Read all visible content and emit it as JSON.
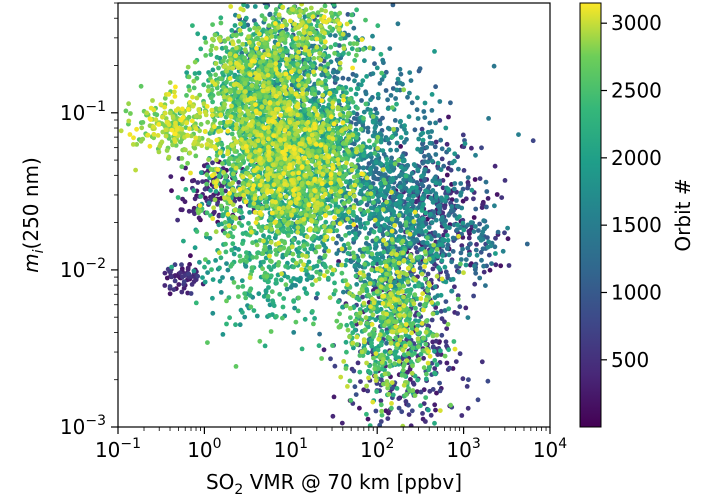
{
  "chart_data": {
    "type": "scatter",
    "title": "",
    "xlabel": {
      "base": "SO",
      "sub": "2",
      "rest": " VMR @ 70 km [ppbv]"
    },
    "ylabel": {
      "base": "m",
      "sub": "i",
      "rest": "(250 nm)"
    },
    "x_scale": "log",
    "y_scale": "log",
    "xlim": [
      0.1,
      10000
    ],
    "ylim": [
      0.001,
      0.5
    ],
    "x_ticks": [
      {
        "base": "10",
        "exp": "−1",
        "value": 0.1
      },
      {
        "base": "10",
        "exp": "0",
        "value": 1
      },
      {
        "base": "10",
        "exp": "1",
        "value": 10
      },
      {
        "base": "10",
        "exp": "2",
        "value": 100
      },
      {
        "base": "10",
        "exp": "3",
        "value": 1000
      },
      {
        "base": "10",
        "exp": "4",
        "value": 10000
      }
    ],
    "y_ticks": [
      {
        "base": "10",
        "exp": "−3",
        "value": 0.001
      },
      {
        "base": "10",
        "exp": "−2",
        "value": 0.01
      },
      {
        "base": "10",
        "exp": "−1",
        "value": 0.1
      }
    ],
    "colorbar": {
      "label": "Orbit #",
      "colormap": "viridis",
      "range": [
        1,
        3150
      ],
      "ticks": [
        "500",
        "1000",
        "1500",
        "2000",
        "2500",
        "3000"
      ],
      "tick_values": [
        500,
        1000,
        1500,
        2000,
        2500,
        3000
      ]
    },
    "grid": false,
    "series": [
      {
        "marker": "circle",
        "clusters": [
          {
            "x_center": 10,
            "y_center": 0.05,
            "x_spread": 0.42,
            "y_spread": 0.28,
            "orbit_range": [
              1800,
              3150
            ],
            "count": 2600
          },
          {
            "x_center": 4,
            "y_center": 0.15,
            "x_spread": 0.32,
            "y_spread": 0.22,
            "orbit_range": [
              1900,
              3100
            ],
            "count": 900
          },
          {
            "x_center": 0.5,
            "y_center": 0.085,
            "x_spread": 0.28,
            "y_spread": 0.1,
            "orbit_range": [
              2600,
              3150
            ],
            "count": 250
          },
          {
            "x_center": 150,
            "y_center": 0.005,
            "x_spread": 0.28,
            "y_spread": 0.28,
            "orbit_range": [
              1900,
              3100
            ],
            "count": 700
          },
          {
            "x_center": 200,
            "y_center": 0.02,
            "x_spread": 0.38,
            "y_spread": 0.25,
            "orbit_range": [
              1000,
              2000
            ],
            "count": 650
          },
          {
            "x_center": 200,
            "y_center": 0.003,
            "x_spread": 0.35,
            "y_spread": 0.35,
            "orbit_range": [
              200,
              900
            ],
            "count": 350
          },
          {
            "x_center": 500,
            "y_center": 0.025,
            "x_spread": 0.35,
            "y_spread": 0.22,
            "orbit_range": [
              150,
              800
            ],
            "count": 250
          },
          {
            "x_center": 1.5,
            "y_center": 0.03,
            "x_spread": 0.25,
            "y_spread": 0.1,
            "orbit_range": [
              100,
              600
            ],
            "count": 120
          },
          {
            "x_center": 0.55,
            "y_center": 0.009,
            "x_spread": 0.12,
            "y_spread": 0.05,
            "orbit_range": [
              100,
              700
            ],
            "count": 60
          },
          {
            "x_center": 10,
            "y_center": 0.2,
            "x_spread": 0.35,
            "y_spread": 0.25,
            "orbit_range": [
              900,
              1700
            ],
            "count": 300
          },
          {
            "x_center": 80,
            "y_center": 0.05,
            "x_spread": 0.45,
            "y_spread": 0.35,
            "orbit_range": [
              1000,
              1900
            ],
            "count": 500
          },
          {
            "x_center": 15,
            "y_center": 0.35,
            "x_spread": 0.3,
            "y_spread": 0.1,
            "orbit_range": [
              2300,
              3150
            ],
            "count": 220
          },
          {
            "x_center": 1500,
            "y_center": 0.015,
            "x_spread": 0.15,
            "y_spread": 0.12,
            "orbit_range": [
              900,
              1700
            ],
            "count": 60
          },
          {
            "x_center": 5,
            "y_center": 0.012,
            "x_spread": 0.4,
            "y_spread": 0.25,
            "orbit_range": [
              1600,
              2700
            ],
            "count": 300
          }
        ]
      }
    ]
  }
}
